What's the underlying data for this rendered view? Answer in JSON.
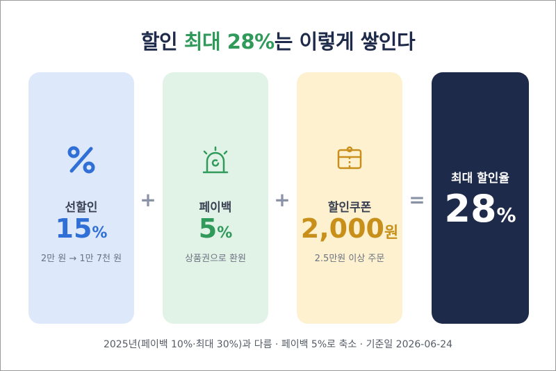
{
  "header": {
    "title_parts": [
      "할인 ",
      "최대 28%",
      "는 이렇게 쌓인다"
    ]
  },
  "cards": [
    {
      "label": "선할인",
      "value": "15",
      "unit": "%",
      "note": "2만 원 → 1만 7천 원"
    },
    {
      "label": "페이백",
      "value": "5",
      "unit": "%",
      "note": "상품권으로 환원"
    },
    {
      "label": "할인쿠폰",
      "value": "2,000",
      "unit": "원",
      "note": "2.5만원 이상 주문"
    }
  ],
  "operators": [
    "+",
    "+",
    "="
  ],
  "result": {
    "label": "최대 할인율",
    "value": "28",
    "unit": "%"
  },
  "footer": "2025년(페이백 10%·최대 30%)과 다름 · 페이백 5%로 축소 · 기준일 2026-06-24"
}
